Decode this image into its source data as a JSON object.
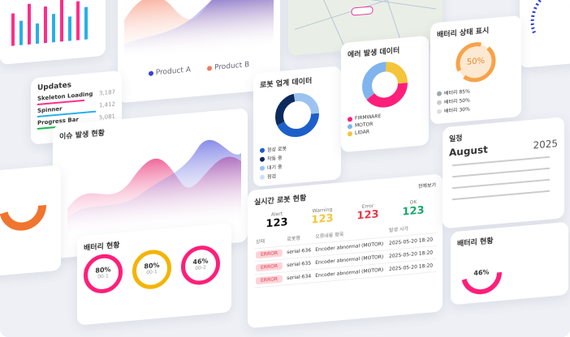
{
  "updates": {
    "title": "Updates",
    "items": [
      {
        "label": "Skeleton Loading",
        "value": "3,187"
      },
      {
        "label": "Spinner",
        "value": "1,412"
      },
      {
        "label": "Progress Bar",
        "value": "5,081"
      }
    ]
  },
  "product_chart": {
    "legend": [
      "Product A",
      "Product B"
    ]
  },
  "robot_data": {
    "title": "로봇 업계 데이터",
    "legend": [
      "정상 로봇",
      "작동 중",
      "대기 중",
      "점검"
    ]
  },
  "error_data": {
    "title": "에러 발생 데이터",
    "legend": [
      "FIRMWARE",
      "MOTOR",
      "LIDAR"
    ]
  },
  "battery_status": {
    "title": "배터리 상태 표시",
    "center": "50%",
    "legend": [
      "배터리 85%",
      "배터리 50%",
      "배터리 30%"
    ]
  },
  "issue_chart": {
    "title": "이슈 발생 현황"
  },
  "robot_status": {
    "title": "실시간 로봇 현황",
    "link": "전체보기",
    "counts": [
      {
        "label": "Alert",
        "value": 123
      },
      {
        "label": "Warning",
        "value": 123
      },
      {
        "label": "Error",
        "value": 123
      },
      {
        "label": "OK",
        "value": 123
      }
    ],
    "columns": [
      "상태",
      "로봇명",
      "오류내용 항목",
      "발생 시각"
    ],
    "rows": [
      [
        "ERROR",
        "serial-636",
        "Encoder abnormal (MOTOR)",
        "2025-05-20 18:20"
      ],
      [
        "ERROR",
        "serial-635",
        "Encoder abnormal (MOTOR)",
        "2025-05-20 18:20"
      ],
      [
        "ERROR",
        "serial-634",
        "Encoder abnormal (MOTOR)",
        "2025-05-20 18:20"
      ]
    ]
  },
  "calendar": {
    "title": "일정",
    "month": "August",
    "year": "2025"
  },
  "battery_now": {
    "title": "배터리 현황",
    "items": [
      {
        "value": "80%",
        "sub": "00-1"
      },
      {
        "value": "80%",
        "sub": "00-1"
      },
      {
        "value": "46%",
        "sub": "00-2"
      }
    ]
  },
  "battery_now_2": {
    "title": "배터리 현황",
    "value": "46%"
  }
}
